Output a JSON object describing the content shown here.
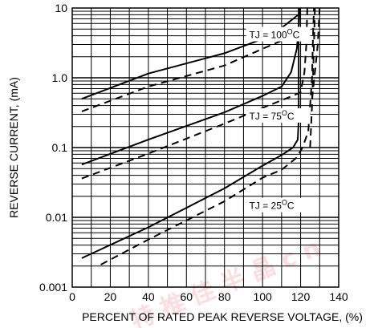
{
  "chart_data": {
    "type": "line",
    "xlabel": "PERCENT OF RATED PEAK REVERSE VOLTAGE, (%)",
    "ylabel": "REVERSE CURRENT, (mA)",
    "xlim": [
      0,
      140
    ],
    "ylim": [
      0.001,
      10
    ],
    "yscale": "log",
    "x_ticks": [
      "0",
      "20",
      "40",
      "60",
      "80",
      "100",
      "120",
      "140"
    ],
    "x_tick_values": [
      0,
      20,
      40,
      60,
      80,
      100,
      120,
      140
    ],
    "y_ticks": [
      "0.001",
      "0.01",
      "0.1",
      "1.0",
      "10"
    ],
    "y_tick_values": [
      0.001,
      0.01,
      0.1,
      1.0,
      10
    ],
    "grid": true,
    "annotations": [
      {
        "text": "TJ = 100",
        "sup": "O",
        "unit": "C",
        "x": 93,
        "y": 3.8
      },
      {
        "text": "TJ = 75",
        "sup": "O",
        "unit": "C",
        "x": 93,
        "y": 0.26
      },
      {
        "text": "TJ = 25",
        "sup": "O",
        "unit": "C",
        "x": 93,
        "y": 0.0135
      }
    ],
    "series": [
      {
        "style": "solid",
        "points": [
          [
            5,
            0.5
          ],
          [
            40,
            1.15
          ],
          [
            80,
            2.25
          ],
          [
            100,
            3.6
          ],
          [
            110,
            5.2
          ],
          [
            120,
            8.5
          ]
        ]
      },
      {
        "style": "dashed",
        "points": [
          [
            5,
            0.33
          ],
          [
            40,
            0.75
          ],
          [
            80,
            1.5
          ],
          [
            100,
            2.6
          ],
          [
            115,
            3.9
          ],
          [
            125,
            5.0
          ]
        ]
      },
      {
        "style": "solid",
        "points": [
          [
            5,
            0.057
          ],
          [
            40,
            0.13
          ],
          [
            80,
            0.32
          ],
          [
            100,
            0.55
          ],
          [
            110,
            0.75
          ],
          [
            115,
            1.2
          ],
          [
            118,
            2.6
          ],
          [
            119,
            5.0
          ],
          [
            119.5,
            10
          ]
        ]
      },
      {
        "style": "dashed",
        "points": [
          [
            5,
            0.036
          ],
          [
            40,
            0.082
          ],
          [
            80,
            0.22
          ],
          [
            100,
            0.37
          ],
          [
            115,
            0.54
          ],
          [
            120,
            0.62
          ],
          [
            122,
            1.2
          ],
          [
            123,
            3.0
          ],
          [
            123.5,
            10
          ]
        ]
      },
      {
        "style": "solid",
        "points": [
          [
            5,
            0.0026
          ],
          [
            40,
            0.0072
          ],
          [
            80,
            0.026
          ],
          [
            100,
            0.055
          ],
          [
            110,
            0.078
          ],
          [
            116,
            0.1
          ],
          [
            118.5,
            0.13
          ],
          [
            119,
            0.25
          ],
          [
            119,
            10
          ]
        ]
      },
      {
        "style": "dashed",
        "points": [
          [
            15,
            0.0021
          ],
          [
            40,
            0.0048
          ],
          [
            80,
            0.017
          ],
          [
            100,
            0.037
          ],
          [
            110,
            0.048
          ],
          [
            118,
            0.072
          ],
          [
            121,
            0.1
          ],
          [
            124,
            0.17
          ],
          [
            125,
            0.4
          ],
          [
            126,
            1.0
          ],
          [
            126.5,
            4
          ],
          [
            127,
            10
          ]
        ]
      },
      {
        "style": "dashed",
        "points": [
          [
            125,
            0.1
          ],
          [
            126,
            0.4
          ],
          [
            126.5,
            1.0
          ],
          [
            127,
            3.0
          ],
          [
            127.5,
            10
          ]
        ]
      },
      {
        "style": "dashed",
        "points": [
          [
            126,
            0.5
          ],
          [
            127.5,
            1.2
          ],
          [
            129,
            3.0
          ],
          [
            130,
            10
          ]
        ]
      }
    ]
  },
  "watermark": {
    "text": "特 推 佳 半 晶 c n",
    "color": "#ee4444"
  }
}
